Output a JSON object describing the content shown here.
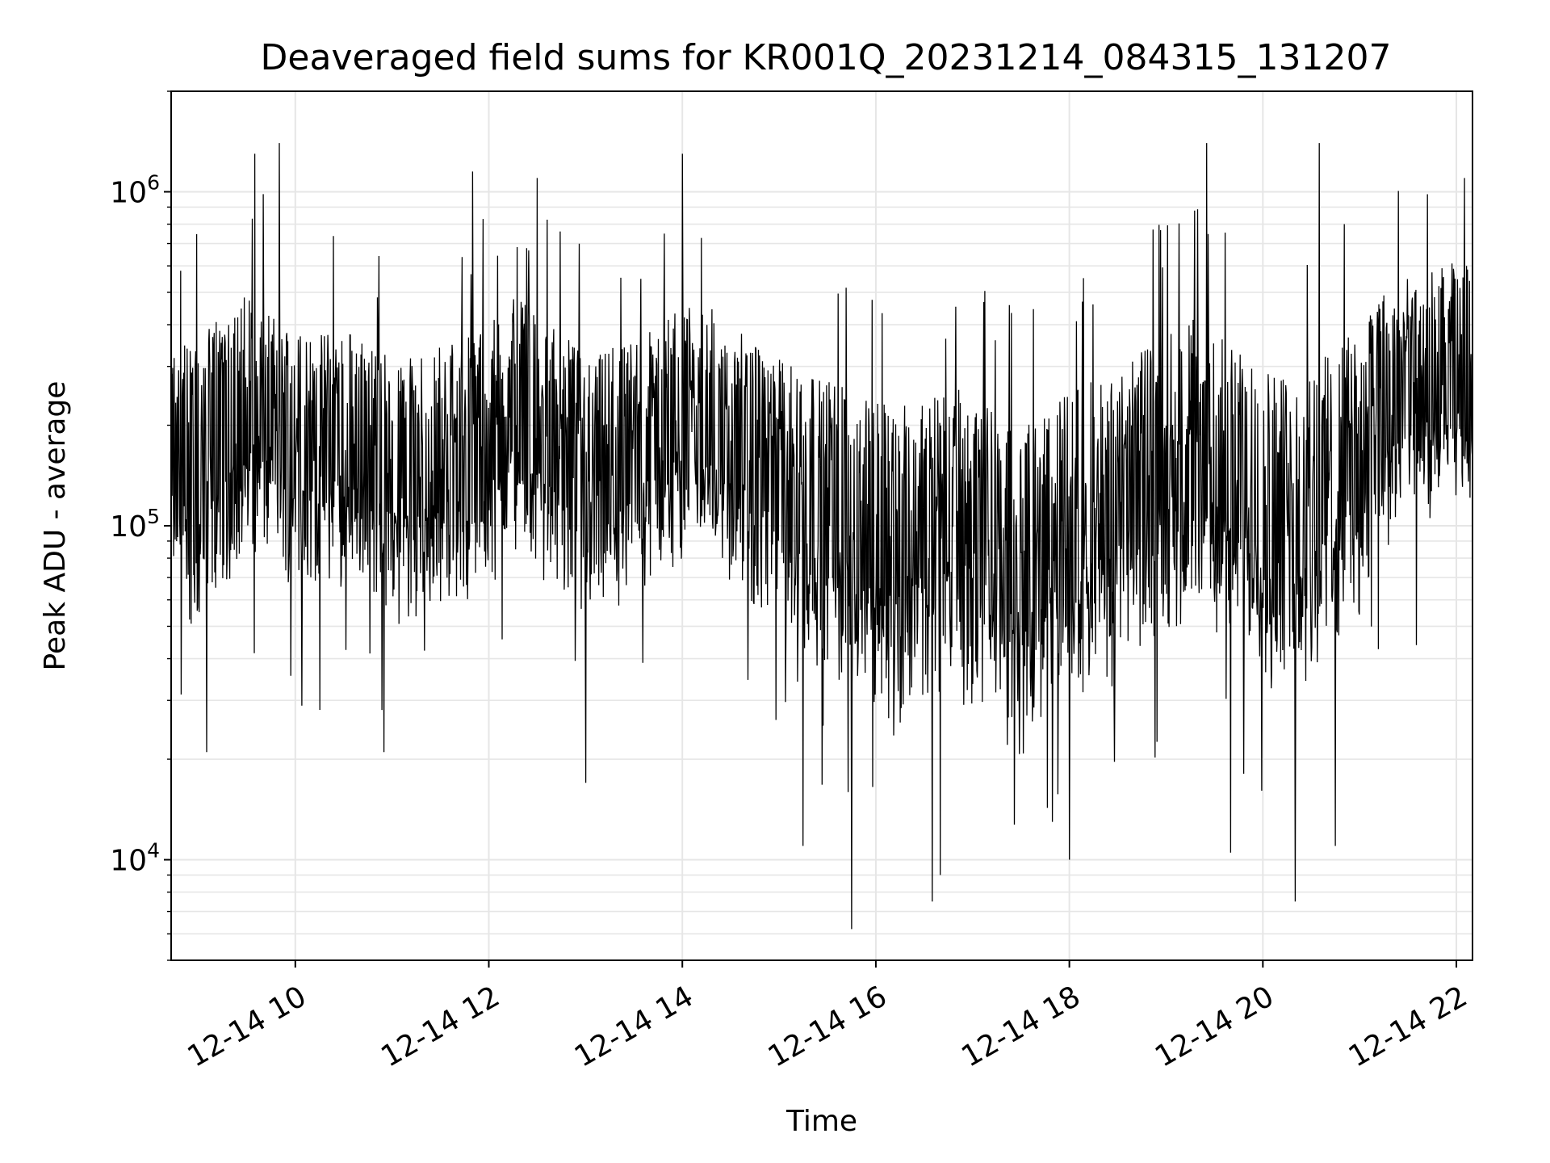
{
  "chart_data": {
    "type": "line",
    "title": "Deaveraged field sums for KR001Q_20231214_084315_131207",
    "xlabel": "Time",
    "ylabel": "Peak ADU - average",
    "y_scale": "log",
    "ylim": [
      5000,
      2000000
    ],
    "xlim": [
      "2023-12-14 08:43",
      "2023-12-14 22:10"
    ],
    "x_ticks": [
      "12-14 10",
      "12-14 12",
      "12-14 14",
      "12-14 16",
      "12-14 18",
      "12-14 20",
      "12-14 22"
    ],
    "y_ticks": [
      {
        "base": "10",
        "exp": "4"
      },
      {
        "base": "10",
        "exp": "5"
      },
      {
        "base": "10",
        "exp": "6"
      }
    ],
    "grid": true,
    "legend": "none",
    "series": [
      {
        "color": "#000000",
        "x": [
          "2023-12-14 08:45",
          "2023-12-14 09:00",
          "2023-12-14 09:15",
          "2023-12-14 09:30",
          "2023-12-14 09:45",
          "2023-12-14 10:00",
          "2023-12-14 10:15",
          "2023-12-14 10:30",
          "2023-12-14 10:45",
          "2023-12-14 11:00",
          "2023-12-14 11:15",
          "2023-12-14 11:30",
          "2023-12-14 11:45",
          "2023-12-14 12:00",
          "2023-12-14 12:15",
          "2023-12-14 12:30",
          "2023-12-14 12:45",
          "2023-12-14 13:00",
          "2023-12-14 13:15",
          "2023-12-14 13:30",
          "2023-12-14 13:45",
          "2023-12-14 14:00",
          "2023-12-14 14:15",
          "2023-12-14 14:30",
          "2023-12-14 14:45",
          "2023-12-14 15:00",
          "2023-12-14 15:15",
          "2023-12-14 15:30",
          "2023-12-14 15:45",
          "2023-12-14 16:00",
          "2023-12-14 16:15",
          "2023-12-14 16:30",
          "2023-12-14 16:45",
          "2023-12-14 17:00",
          "2023-12-14 17:15",
          "2023-12-14 17:30",
          "2023-12-14 17:45",
          "2023-12-14 18:00",
          "2023-12-14 18:15",
          "2023-12-14 18:30",
          "2023-12-14 18:45",
          "2023-12-14 19:00",
          "2023-12-14 19:15",
          "2023-12-14 19:30",
          "2023-12-14 19:45",
          "2023-12-14 20:00",
          "2023-12-14 20:15",
          "2023-12-14 20:30",
          "2023-12-14 20:45",
          "2023-12-14 21:00",
          "2023-12-14 21:15",
          "2023-12-14 21:30",
          "2023-12-14 21:45",
          "2023-12-14 22:00"
        ],
        "y": [
          130000,
          100000,
          150000,
          170000,
          160000,
          150000,
          140000,
          150000,
          130000,
          110000,
          110000,
          120000,
          130000,
          140000,
          170000,
          150000,
          120000,
          100000,
          110000,
          120000,
          140000,
          170000,
          160000,
          140000,
          120000,
          110000,
          100000,
          90000,
          80000,
          70000,
          70000,
          75000,
          80000,
          75000,
          60000,
          55000,
          60000,
          70000,
          80000,
          90000,
          110000,
          120000,
          130000,
          120000,
          100000,
          90000,
          80000,
          90000,
          110000,
          130000,
          170000,
          190000,
          200000,
          230000
        ],
        "band_low": [
          60000,
          45000,
          60000,
          70000,
          70000,
          65000,
          60000,
          65000,
          60000,
          50000,
          50000,
          55000,
          55000,
          60000,
          70000,
          65000,
          55000,
          45000,
          50000,
          55000,
          60000,
          75000,
          70000,
          60000,
          50000,
          45000,
          40000,
          35000,
          30000,
          25000,
          22000,
          25000,
          28000,
          25000,
          20000,
          18000,
          20000,
          25000,
          28000,
          32000,
          40000,
          45000,
          50000,
          45000,
          38000,
          32000,
          28000,
          32000,
          40000,
          50000,
          80000,
          90000,
          100000,
          110000
        ],
        "band_high": [
          350000,
          400000,
          450000,
          500000,
          450000,
          400000,
          380000,
          400000,
          350000,
          320000,
          320000,
          350000,
          380000,
          400000,
          480000,
          450000,
          380000,
          320000,
          340000,
          360000,
          400000,
          480000,
          460000,
          400000,
          350000,
          320000,
          300000,
          280000,
          260000,
          240000,
          240000,
          250000,
          260000,
          250000,
          220000,
          200000,
          220000,
          250000,
          280000,
          300000,
          350000,
          380000,
          420000,
          380000,
          330000,
          300000,
          280000,
          300000,
          350000,
          400000,
          500000,
          550000,
          580000,
          620000
        ],
        "peaks": [
          [
            "2023-12-14 09:35",
            1300000
          ],
          [
            "2023-12-14 09:50",
            1400000
          ],
          [
            "2023-12-14 11:50",
            1150000
          ],
          [
            "2023-12-14 12:30",
            1100000
          ],
          [
            "2023-12-14 14:00",
            1300000
          ],
          [
            "2023-12-14 19:25",
            1400000
          ],
          [
            "2023-12-14 20:35",
            1400000
          ],
          [
            "2023-12-14 22:05",
            1100000
          ]
        ],
        "dips": [
          [
            "2023-12-14 09:05",
            21000
          ],
          [
            "2023-12-14 10:55",
            21000
          ],
          [
            "2023-12-14 13:00",
            17000
          ],
          [
            "2023-12-14 15:15",
            11000
          ],
          [
            "2023-12-14 15:45",
            6200
          ],
          [
            "2023-12-14 16:35",
            7500
          ],
          [
            "2023-12-14 16:40",
            9000
          ],
          [
            "2023-12-14 18:00",
            10000
          ],
          [
            "2023-12-14 19:40",
            10500
          ],
          [
            "2023-12-14 20:20",
            7500
          ],
          [
            "2023-12-14 20:45",
            11000
          ]
        ]
      }
    ]
  }
}
